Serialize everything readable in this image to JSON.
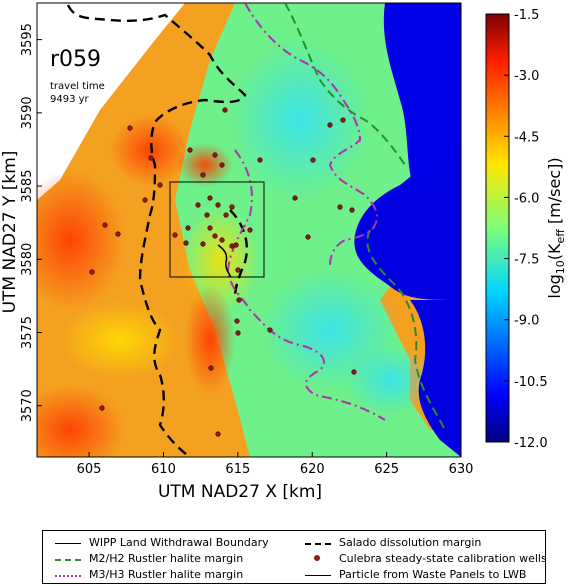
{
  "map": {
    "run_label": "r059",
    "travel_time_label": "travel time",
    "travel_time_value": "9493 yr",
    "x_axis_label": "UTM NAD27 X [km]",
    "y_axis_label": "UTM NAD27 Y [km]",
    "x_ticks": [
      "605",
      "610",
      "615",
      "620",
      "625",
      "630"
    ],
    "y_ticks": [
      "3570",
      "3575",
      "3580",
      "3585",
      "3590",
      "3595"
    ],
    "x_range": [
      601.5,
      630
    ],
    "y_range": [
      3566.5,
      3597.5
    ]
  },
  "colorbar": {
    "label_prefix": "log",
    "label_sub10": "10",
    "label_main": "(K",
    "label_sub_eff": "eff",
    "label_units": " [m/sec])",
    "ticks": [
      "-1.5",
      "-3.0",
      "-4.5",
      "-6.0",
      "-7.5",
      "-9.0",
      "-10.5",
      "-12.0"
    ],
    "range": [
      -12.0,
      -1.5
    ]
  },
  "legend": {
    "items": [
      {
        "label": "WIPP Land Withdrawal Boundary",
        "style": "solid-thin",
        "color": "#000000"
      },
      {
        "label": "Salado dissolution margin",
        "style": "dashed-thick",
        "color": "#000000"
      },
      {
        "label": "M2/H2 Rustler halite margin",
        "style": "dashed",
        "color": "#2e8b2e"
      },
      {
        "label": "Culebra steady-state calibration wells",
        "style": "dot",
        "color": "#8b1a1a"
      },
      {
        "label": "M3/H3 Rustler halite margin",
        "style": "dashdot",
        "color": "#b030b0"
      },
      {
        "label": "Particle from Waste Panels to LWB",
        "style": "solid",
        "color": "#000000"
      }
    ]
  },
  "colors": {
    "high": "#8b0000",
    "low": "#00007f",
    "salado": "#000000",
    "m2h2": "#2e8b2e",
    "m3h3": "#b030b0",
    "wells": "#8b1a1a"
  }
}
